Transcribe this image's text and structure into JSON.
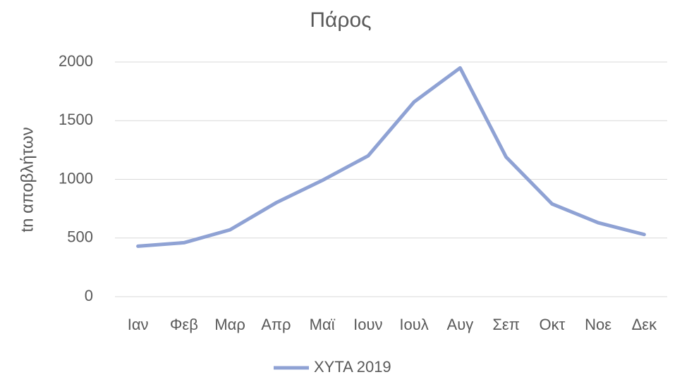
{
  "chart_data": {
    "type": "line",
    "title": "Πάρος",
    "y_label": "tn αποβλήτων",
    "categories": [
      "Ιαν",
      "Φεβ",
      "Μαρ",
      "Απρ",
      "Μαϊ",
      "Ιουν",
      "Ιουλ",
      "Αυγ",
      "Σεπ",
      "Οκτ",
      "Νοε",
      "Δεκ"
    ],
    "series": [
      {
        "name": "ΧΥΤΑ 2019",
        "color": "#8fa2d4",
        "values": [
          430,
          460,
          570,
          800,
          990,
          1200,
          1660,
          1950,
          1190,
          790,
          630,
          530
        ]
      }
    ],
    "ylim": [
      0,
      2000
    ],
    "yticks": [
      0,
      500,
      1000,
      1500,
      2000
    ],
    "grid": true,
    "legend": "bottom"
  }
}
